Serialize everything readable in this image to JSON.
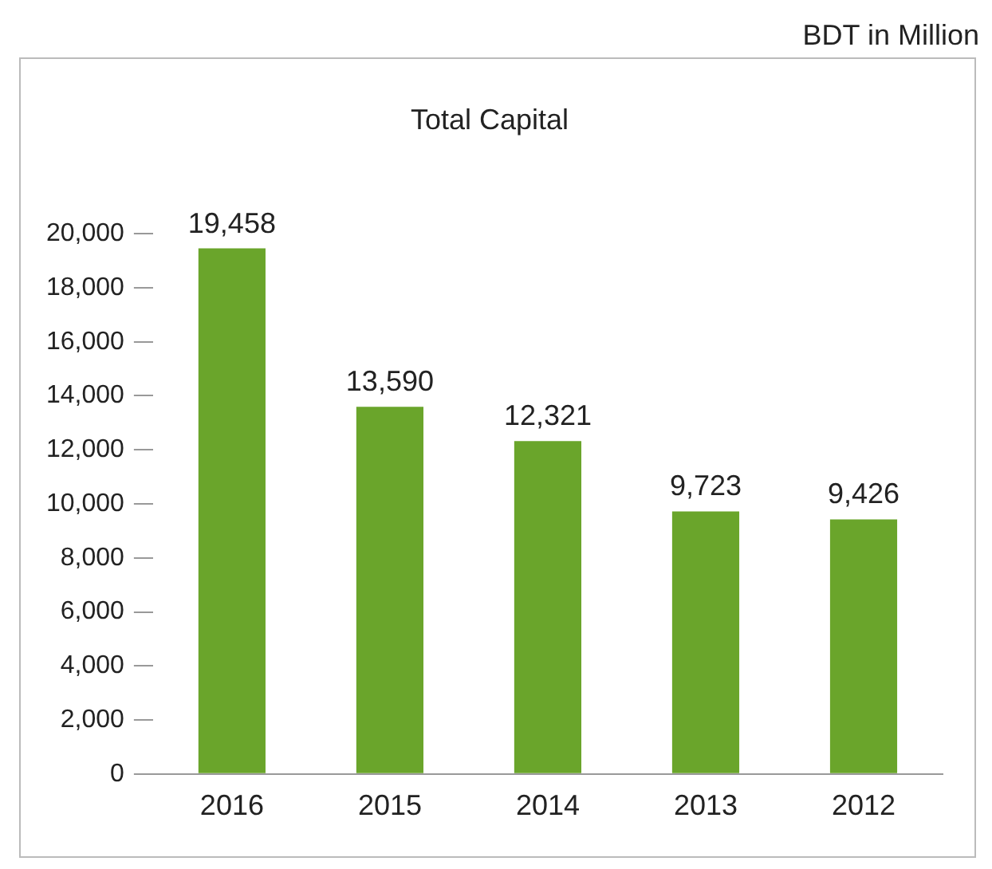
{
  "chart_data": {
    "type": "bar",
    "title": "Total Capital",
    "annotations": [
      "BDT in Million"
    ],
    "categories": [
      "2016",
      "2015",
      "2014",
      "2013",
      "2012"
    ],
    "values": [
      19458,
      13590,
      12321,
      9723,
      9426
    ],
    "color": "#6aa52b",
    "ylim": [
      0,
      20000
    ],
    "yticks": [
      {
        "value": 0,
        "label": "0"
      },
      {
        "value": 2000,
        "label": "2,000"
      },
      {
        "value": 4000,
        "label": "4,000"
      },
      {
        "value": 6000,
        "label": "6,000"
      },
      {
        "value": 8000,
        "label": "8,000"
      },
      {
        "value": 10000,
        "label": "10,000"
      },
      {
        "value": 12000,
        "label": "12,000"
      },
      {
        "value": 14000,
        "label": "14,000"
      },
      {
        "value": 16000,
        "label": "16,000"
      },
      {
        "value": 18000,
        "label": "18,000"
      },
      {
        "value": 20000,
        "label": "20,000"
      }
    ],
    "value_labels": [
      "19,458",
      "13,590",
      "12,321",
      "9,723",
      "9,426"
    ],
    "grid": false,
    "legend": false
  }
}
